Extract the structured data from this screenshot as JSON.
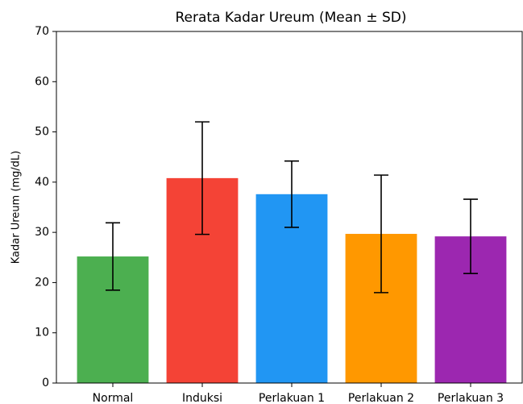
{
  "chart_data": {
    "type": "bar",
    "title": "Rerata Kadar Ureum (Mean ± SD)",
    "ylabel": "Kadar Ureum (mg/dL)",
    "categories": [
      "Normal",
      "Induksi",
      "Perlakuan 1",
      "Perlakuan 2",
      "Perlakuan 3"
    ],
    "values": [
      25.2,
      40.8,
      37.6,
      29.7,
      29.2
    ],
    "errors": [
      6.7,
      11.2,
      6.6,
      11.7,
      7.4
    ],
    "colors": [
      "#4caf50",
      "#f44336",
      "#2196f3",
      "#ff9800",
      "#9c27b0"
    ],
    "ylim": [
      0,
      70
    ],
    "yticks": [
      0,
      10,
      20,
      30,
      40,
      50,
      60,
      70
    ]
  }
}
